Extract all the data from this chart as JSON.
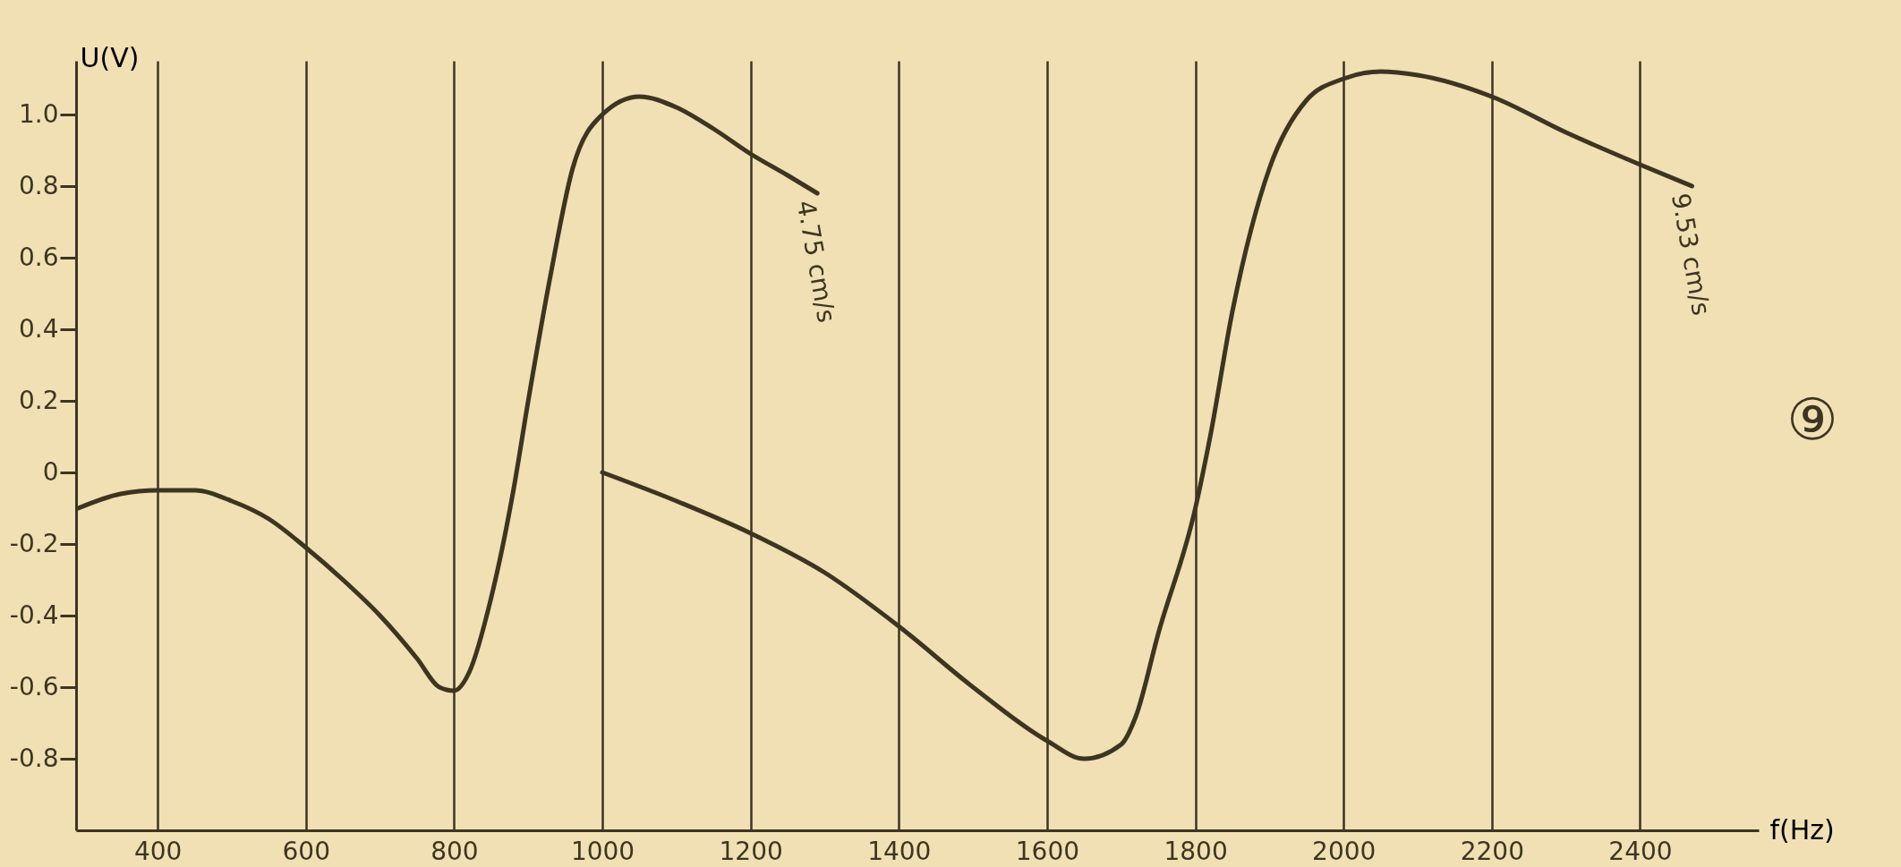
{
  "chart_data": {
    "type": "line",
    "xlabel": "f(Hz)",
    "ylabel": "U(V)",
    "annotations": [
      "⑨"
    ],
    "xlim": [
      290,
      2560
    ],
    "ylim": [
      -1.0,
      1.15
    ],
    "xticks": [
      400,
      600,
      800,
      1000,
      1200,
      1400,
      1600,
      1800,
      2000,
      2200,
      2400
    ],
    "yticks": [
      {
        "value": 1.0,
        "label": "1.0"
      },
      0.8,
      0.6,
      0.4,
      0.2,
      0,
      -0.2,
      -0.4,
      -0.6,
      -0.8
    ],
    "grid": "x",
    "legend": false,
    "line_style": "solid",
    "marker": "none",
    "series": [
      {
        "name": "4.75 cm/s",
        "color": "#3d3522",
        "x": [
          293,
          350,
          400,
          450,
          500,
          550,
          600,
          650,
          700,
          750,
          780,
          800,
          820,
          850,
          880,
          900,
          930,
          960,
          1000,
          1050,
          1100,
          1150,
          1200,
          1250,
          1290
        ],
        "values": [
          -0.1,
          -0.06,
          -0.05,
          -0.05,
          -0.08,
          -0.13,
          -0.21,
          -0.3,
          -0.4,
          -0.52,
          -0.6,
          -0.61,
          -0.56,
          -0.35,
          -0.05,
          0.2,
          0.55,
          0.85,
          1.0,
          1.05,
          1.02,
          0.96,
          0.89,
          0.83,
          0.78
        ]
      },
      {
        "name": "9.53 cm/s",
        "color": "#3d3522",
        "x": [
          1000,
          1100,
          1200,
          1300,
          1400,
          1500,
          1600,
          1650,
          1700,
          1720,
          1750,
          1800,
          1820,
          1850,
          1900,
          1950,
          2000,
          2050,
          2100,
          2200,
          2300,
          2400,
          2470
        ],
        "values": [
          0.0,
          -0.08,
          -0.17,
          -0.28,
          -0.43,
          -0.6,
          -0.75,
          -0.8,
          -0.76,
          -0.68,
          -0.45,
          -0.1,
          0.1,
          0.45,
          0.85,
          1.04,
          1.1,
          1.12,
          1.11,
          1.05,
          0.95,
          0.86,
          0.8
        ]
      }
    ]
  }
}
